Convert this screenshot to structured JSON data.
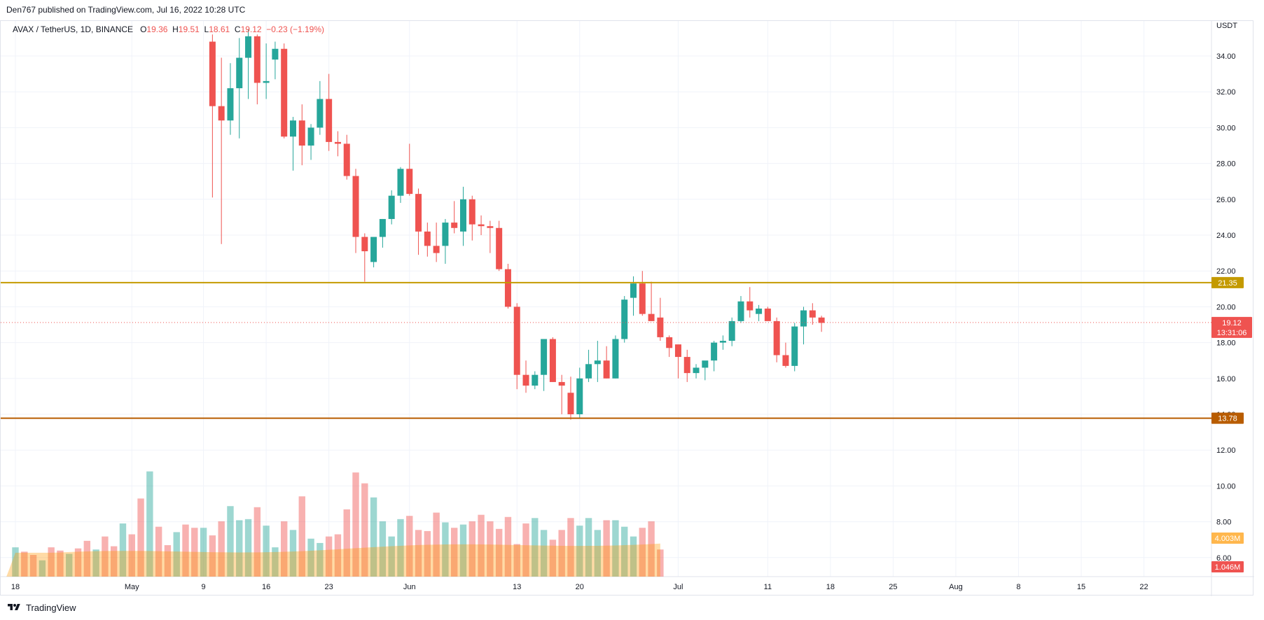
{
  "header": {
    "published": "Den767 published on TradingView.com, Jul 16, 2022 10:28 UTC"
  },
  "legend": {
    "symbol": "AVAX / TetherUS, 1D, BINANCE",
    "o_label": "O",
    "o_value": "19.36",
    "h_label": "H",
    "h_value": "19.51",
    "l_label": "L",
    "l_value": "18.61",
    "c_label": "C",
    "c_value": "19.12",
    "change": "−0.23 (−1.19%)"
  },
  "footer": {
    "brand": "TradingView"
  },
  "colors": {
    "up": "#26a69a",
    "down": "#ef5350",
    "up_volume": "#26a69a",
    "down_volume": "#ef5350",
    "resistance_line": "#c49a00",
    "support_line": "#b85c00",
    "volume_ma": "#ff9800",
    "grid": "#f0f3fa"
  },
  "chart_data": {
    "type": "candlestick",
    "axis_unit": "USDT",
    "y_ticks": [
      "34.00",
      "32.00",
      "30.00",
      "28.00",
      "26.00",
      "24.00",
      "22.00",
      "20.00",
      "18.00",
      "16.00",
      "14.00",
      "12.00",
      "10.00",
      "8.00",
      "6.00"
    ],
    "y_tick_values": [
      34,
      32,
      30,
      28,
      26,
      24,
      22,
      20,
      18,
      16,
      14,
      12,
      10,
      8,
      6
    ],
    "ylim": [
      5,
      35.2
    ],
    "x_ticks": [
      {
        "label": "18",
        "date": "2022-04-18"
      },
      {
        "label": "May",
        "date": "2022-05-01"
      },
      {
        "label": "9",
        "date": "2022-05-09"
      },
      {
        "label": "16",
        "date": "2022-05-16"
      },
      {
        "label": "23",
        "date": "2022-05-23"
      },
      {
        "label": "Jun",
        "date": "2022-06-01"
      },
      {
        "label": "13",
        "date": "2022-06-13"
      },
      {
        "label": "20",
        "date": "2022-06-20"
      },
      {
        "label": "Jul",
        "date": "2022-07-01"
      },
      {
        "label": "11",
        "date": "2022-07-11"
      },
      {
        "label": "18",
        "date": "2022-07-18"
      },
      {
        "label": "25",
        "date": "2022-07-25"
      },
      {
        "label": "Aug",
        "date": "2022-08-01"
      },
      {
        "label": "8",
        "date": "2022-08-08"
      },
      {
        "label": "15",
        "date": "2022-08-15"
      },
      {
        "label": "22",
        "date": "2022-08-22"
      }
    ],
    "horizontal_lines": [
      {
        "value": 21.35,
        "label": "21.35",
        "color": "#c49a00"
      },
      {
        "value": 13.78,
        "label": "13.78",
        "color": "#b85c00"
      }
    ],
    "last_price": {
      "value": 19.12,
      "label": "19.12",
      "countdown": "13:31:06"
    },
    "volume_labels": [
      {
        "label": "4.003M",
        "color": "#ffb74d"
      },
      {
        "label": "1.046M",
        "color": "#ef5350"
      }
    ],
    "candles": [
      {
        "date": "2022-05-10",
        "o": 34.8,
        "h": 35.2,
        "l": 26.1,
        "c": 31.2
      },
      {
        "date": "2022-05-11",
        "o": 31.2,
        "h": 33.9,
        "l": 23.5,
        "c": 30.4
      },
      {
        "date": "2022-05-12",
        "o": 30.4,
        "h": 33.6,
        "l": 29.6,
        "c": 32.2
      },
      {
        "date": "2022-05-13",
        "o": 32.2,
        "h": 35.0,
        "l": 29.4,
        "c": 33.9
      },
      {
        "date": "2022-05-14",
        "o": 33.9,
        "h": 35.5,
        "l": 31.6,
        "c": 35.1
      },
      {
        "date": "2022-05-15",
        "o": 35.1,
        "h": 35.2,
        "l": 31.3,
        "c": 32.5
      },
      {
        "date": "2022-05-16",
        "o": 32.5,
        "h": 34.7,
        "l": 31.6,
        "c": 32.6
      },
      {
        "date": "2022-05-17",
        "o": 33.8,
        "h": 34.8,
        "l": 32.7,
        "c": 34.4
      },
      {
        "date": "2022-05-18",
        "o": 34.4,
        "h": 34.7,
        "l": 29.4,
        "c": 29.5
      },
      {
        "date": "2022-05-19",
        "o": 29.5,
        "h": 30.6,
        "l": 27.6,
        "c": 30.4
      },
      {
        "date": "2022-05-20",
        "o": 30.4,
        "h": 31.3,
        "l": 27.9,
        "c": 29.0
      },
      {
        "date": "2022-05-21",
        "o": 29.0,
        "h": 30.2,
        "l": 28.2,
        "c": 30.0
      },
      {
        "date": "2022-05-22",
        "o": 30.0,
        "h": 32.6,
        "l": 29.6,
        "c": 31.6
      },
      {
        "date": "2022-05-23",
        "o": 31.6,
        "h": 33.0,
        "l": 28.7,
        "c": 29.2
      },
      {
        "date": "2022-05-24",
        "o": 29.2,
        "h": 29.8,
        "l": 28.4,
        "c": 29.1
      },
      {
        "date": "2022-05-25",
        "o": 29.1,
        "h": 29.6,
        "l": 27.1,
        "c": 27.3
      },
      {
        "date": "2022-05-26",
        "o": 27.3,
        "h": 27.7,
        "l": 23.0,
        "c": 23.9
      },
      {
        "date": "2022-05-27",
        "o": 23.9,
        "h": 24.1,
        "l": 21.4,
        "c": 23.1
      },
      {
        "date": "2022-05-28",
        "o": 22.5,
        "h": 23.6,
        "l": 22.2,
        "c": 23.9
      },
      {
        "date": "2022-05-29",
        "o": 23.9,
        "h": 24.9,
        "l": 23.3,
        "c": 24.9
      },
      {
        "date": "2022-05-30",
        "o": 24.9,
        "h": 26.5,
        "l": 24.6,
        "c": 26.2
      },
      {
        "date": "2022-05-31",
        "o": 26.2,
        "h": 27.8,
        "l": 25.8,
        "c": 27.7
      },
      {
        "date": "2022-06-01",
        "o": 27.7,
        "h": 29.1,
        "l": 26.2,
        "c": 26.3
      },
      {
        "date": "2022-06-02",
        "o": 26.3,
        "h": 26.6,
        "l": 22.9,
        "c": 24.2
      },
      {
        "date": "2022-06-03",
        "o": 24.2,
        "h": 24.7,
        "l": 22.8,
        "c": 23.4
      },
      {
        "date": "2022-06-04",
        "o": 23.4,
        "h": 24.7,
        "l": 22.5,
        "c": 23.0
      },
      {
        "date": "2022-06-05",
        "o": 23.4,
        "h": 24.9,
        "l": 22.4,
        "c": 24.7
      },
      {
        "date": "2022-06-06",
        "o": 24.7,
        "h": 25.9,
        "l": 24.1,
        "c": 24.4
      },
      {
        "date": "2022-06-07",
        "o": 24.2,
        "h": 26.7,
        "l": 23.4,
        "c": 26.0
      },
      {
        "date": "2022-06-08",
        "o": 26.0,
        "h": 26.2,
        "l": 23.7,
        "c": 24.6
      },
      {
        "date": "2022-06-09",
        "o": 24.6,
        "h": 25.1,
        "l": 24.0,
        "c": 24.5
      },
      {
        "date": "2022-06-10",
        "o": 24.5,
        "h": 24.8,
        "l": 23.0,
        "c": 24.4
      },
      {
        "date": "2022-06-11",
        "o": 24.4,
        "h": 24.8,
        "l": 22.0,
        "c": 22.1
      },
      {
        "date": "2022-06-12",
        "o": 22.1,
        "h": 22.4,
        "l": 19.9,
        "c": 20.0
      },
      {
        "date": "2022-06-13",
        "o": 20.0,
        "h": 20.2,
        "l": 15.4,
        "c": 16.2
      },
      {
        "date": "2022-06-14",
        "o": 16.2,
        "h": 17.0,
        "l": 15.2,
        "c": 15.6
      },
      {
        "date": "2022-06-15",
        "o": 15.6,
        "h": 16.4,
        "l": 15.4,
        "c": 16.2
      },
      {
        "date": "2022-06-16",
        "o": 16.2,
        "h": 17.9,
        "l": 15.3,
        "c": 18.2
      },
      {
        "date": "2022-06-17",
        "o": 18.2,
        "h": 18.3,
        "l": 15.8,
        "c": 15.8
      },
      {
        "date": "2022-06-18",
        "o": 15.8,
        "h": 16.2,
        "l": 14.0,
        "c": 15.6
      },
      {
        "date": "2022-06-19",
        "o": 15.2,
        "h": 16.1,
        "l": 13.7,
        "c": 14.0
      },
      {
        "date": "2022-06-20",
        "o": 14.0,
        "h": 16.6,
        "l": 13.8,
        "c": 16.0
      },
      {
        "date": "2022-06-21",
        "o": 16.0,
        "h": 17.6,
        "l": 15.8,
        "c": 16.8
      },
      {
        "date": "2022-06-22",
        "o": 16.8,
        "h": 18.1,
        "l": 15.8,
        "c": 17.0
      },
      {
        "date": "2022-06-23",
        "o": 17.0,
        "h": 17.8,
        "l": 16.0,
        "c": 16.0
      },
      {
        "date": "2022-06-24",
        "o": 16.0,
        "h": 18.4,
        "l": 16.0,
        "c": 18.2
      },
      {
        "date": "2022-06-25",
        "o": 18.2,
        "h": 20.6,
        "l": 18.0,
        "c": 20.4
      },
      {
        "date": "2022-06-26",
        "o": 20.5,
        "h": 21.7,
        "l": 19.5,
        "c": 21.3
      },
      {
        "date": "2022-06-27",
        "o": 21.3,
        "h": 22.0,
        "l": 19.5,
        "c": 19.6
      },
      {
        "date": "2022-06-28",
        "o": 19.6,
        "h": 21.4,
        "l": 19.2,
        "c": 19.2
      },
      {
        "date": "2022-06-29",
        "o": 19.4,
        "h": 20.5,
        "l": 18.1,
        "c": 18.3
      },
      {
        "date": "2022-06-30",
        "o": 18.3,
        "h": 18.4,
        "l": 17.2,
        "c": 17.7
      },
      {
        "date": "2022-07-01",
        "o": 17.9,
        "h": 17.8,
        "l": 16.0,
        "c": 17.2
      },
      {
        "date": "2022-07-02",
        "o": 17.2,
        "h": 17.6,
        "l": 15.8,
        "c": 16.3
      },
      {
        "date": "2022-07-03",
        "o": 16.3,
        "h": 16.8,
        "l": 16.0,
        "c": 16.6
      },
      {
        "date": "2022-07-04",
        "o": 16.6,
        "h": 16.9,
        "l": 15.9,
        "c": 17.0
      },
      {
        "date": "2022-07-05",
        "o": 17.0,
        "h": 18.1,
        "l": 16.4,
        "c": 18.0
      },
      {
        "date": "2022-07-06",
        "o": 18.0,
        "h": 18.4,
        "l": 17.6,
        "c": 18.1
      },
      {
        "date": "2022-07-07",
        "o": 18.1,
        "h": 19.4,
        "l": 17.8,
        "c": 19.2
      },
      {
        "date": "2022-07-08",
        "o": 19.2,
        "h": 20.6,
        "l": 19.1,
        "c": 20.3
      },
      {
        "date": "2022-07-09",
        "o": 20.3,
        "h": 21.1,
        "l": 19.4,
        "c": 19.8
      },
      {
        "date": "2022-07-10",
        "o": 19.6,
        "h": 20.1,
        "l": 19.2,
        "c": 19.9
      },
      {
        "date": "2022-07-11",
        "o": 19.9,
        "h": 20.0,
        "l": 19.3,
        "c": 19.2
      },
      {
        "date": "2022-07-12",
        "o": 19.2,
        "h": 19.4,
        "l": 16.9,
        "c": 17.3
      },
      {
        "date": "2022-07-13",
        "o": 17.3,
        "h": 18.0,
        "l": 16.6,
        "c": 16.7
      },
      {
        "date": "2022-07-14",
        "o": 16.7,
        "h": 19.1,
        "l": 16.4,
        "c": 18.9
      },
      {
        "date": "2022-07-15",
        "o": 18.9,
        "h": 20.0,
        "l": 17.9,
        "c": 19.8
      },
      {
        "date": "2022-07-16",
        "o": 19.8,
        "h": 20.2,
        "l": 19.0,
        "c": 19.4
      },
      {
        "date": "2022-07-17",
        "o": 19.4,
        "h": 19.5,
        "l": 18.6,
        "c": 19.1
      }
    ],
    "volume_series": {
      "start_date": "2022-04-18",
      "values_relative": [
        0.27,
        0.24,
        0.23,
        0.22,
        0.2,
        0.19,
        0.15,
        0.14,
        0.27,
        0.23,
        0.24,
        0.22,
        0.21,
        0.2,
        0.26,
        0.27,
        0.33,
        0.27,
        0.25,
        0.29,
        0.37,
        0.31,
        0.28,
        0.57,
        0.49,
        0.36,
        0.39,
        0.48,
        0.72,
        1.07,
        0.97,
        0.71,
        0.46,
        0.36,
        0.29,
        0.46,
        0.41,
        0.37,
        0.48,
        0.45,
        0.45,
        0.27,
        0.45,
        0.43,
        0.38,
        0.26,
        0.51,
        0.5,
        0.65,
        0.71,
        0.52,
        0.5,
        0.53,
        0.67,
        0.64,
        0.66,
        0.47,
        0.4,
        0.27,
        0.33,
        0.51,
        0.48,
        0.43,
        0.47,
        0.74,
        0.38,
        0.35,
        0.27,
        0.31,
        0.52,
        0.37,
        0.44,
        0.39,
        0.5,
        0.62,
        0.72,
        0.96,
        1.09,
        0.86,
        0.99,
        0.73,
        0.5,
        0.51,
        0.44,
        0.37,
        0.4,
        0.53,
        0.34,
        0.56,
        0.58,
        0.43,
        0.37,
        0.42,
        0.43,
        0.59,
        0.56,
        0.5,
        0.51,
        0.45,
        0.41,
        0.48,
        0.46,
        0.51,
        0.47,
        0.57,
        0.43,
        0.51,
        0.41,
        0.44,
        0.42,
        0.55,
        0.53,
        0.3,
        0.54,
        0.49,
        0.52,
        0.54,
        0.46,
        0.43,
        0.54,
        0.34,
        0.37,
        0.43,
        0.43,
        0.54,
        0.51,
        0.47,
        0.55,
        0.54,
        0.5,
        0.43,
        0.52,
        0.52,
        0.54,
        0.52,
        0.53,
        0.46,
        0.38,
        0.37,
        0.3,
        0.45,
        0.51,
        0.51,
        0.42,
        0.25,
        0.11
      ],
      "note_direction": "matches candle color"
    }
  }
}
